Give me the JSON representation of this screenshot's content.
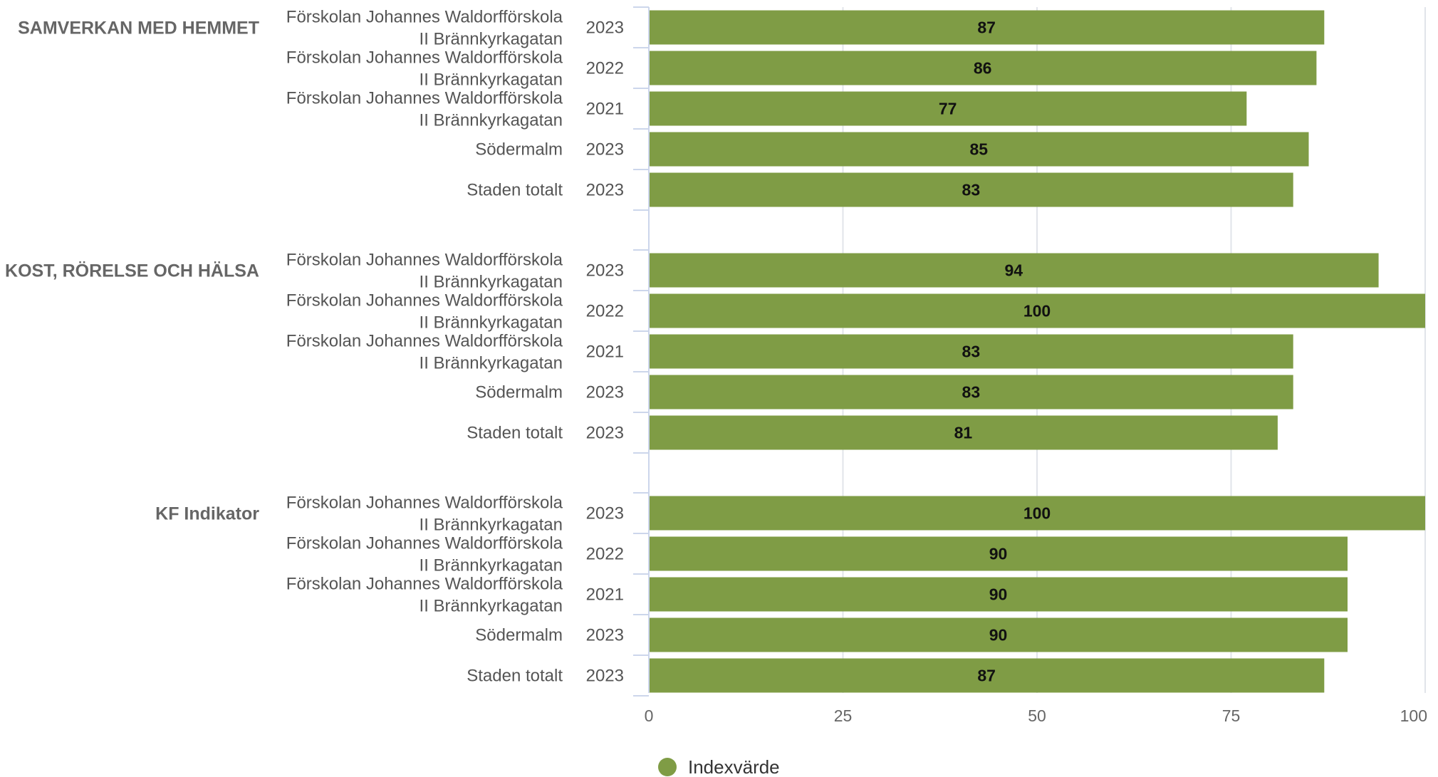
{
  "chart_data": {
    "type": "bar",
    "orientation": "horizontal",
    "xlim": [
      0,
      100
    ],
    "ticks": [
      0,
      25,
      50,
      75,
      100
    ],
    "grid": true,
    "legend_position": "bottom-center",
    "color": "#7f9c45",
    "series": [
      {
        "name": "Indexvärde"
      }
    ],
    "groups": [
      {
        "name": "SAMVERKAN MED HEMMET",
        "rows": [
          {
            "label": [
              "Förskolan Johannes Waldorfförskola",
              "II Brännkyrkagatan"
            ],
            "year": "2023",
            "value": 87
          },
          {
            "label": [
              "Förskolan Johannes Waldorfförskola",
              "II Brännkyrkagatan"
            ],
            "year": "2022",
            "value": 86
          },
          {
            "label": [
              "Förskolan Johannes Waldorfförskola",
              "II Brännkyrkagatan"
            ],
            "year": "2021",
            "value": 77
          },
          {
            "label": [
              "Södermalm"
            ],
            "year": "2023",
            "value": 85
          },
          {
            "label": [
              "Staden totalt"
            ],
            "year": "2023",
            "value": 83
          }
        ]
      },
      {
        "name": "KOST, RÖRELSE OCH HÄLSA",
        "rows": [
          {
            "label": [
              "Förskolan Johannes Waldorfförskola",
              "II Brännkyrkagatan"
            ],
            "year": "2023",
            "value": 94
          },
          {
            "label": [
              "Förskolan Johannes Waldorfförskola",
              "II Brännkyrkagatan"
            ],
            "year": "2022",
            "value": 100
          },
          {
            "label": [
              "Förskolan Johannes Waldorfförskola",
              "II Brännkyrkagatan"
            ],
            "year": "2021",
            "value": 83
          },
          {
            "label": [
              "Södermalm"
            ],
            "year": "2023",
            "value": 83
          },
          {
            "label": [
              "Staden totalt"
            ],
            "year": "2023",
            "value": 81
          }
        ]
      },
      {
        "name": "KF Indikator",
        "rows": [
          {
            "label": [
              "Förskolan Johannes Waldorfförskola",
              "II Brännkyrkagatan"
            ],
            "year": "2023",
            "value": 100
          },
          {
            "label": [
              "Förskolan Johannes Waldorfförskola",
              "II Brännkyrkagatan"
            ],
            "year": "2022",
            "value": 90
          },
          {
            "label": [
              "Förskolan Johannes Waldorfförskola",
              "II Brännkyrkagatan"
            ],
            "year": "2021",
            "value": 90
          },
          {
            "label": [
              "Södermalm"
            ],
            "year": "2023",
            "value": 90
          },
          {
            "label": [
              "Staden totalt"
            ],
            "year": "2023",
            "value": 87
          }
        ]
      }
    ]
  }
}
